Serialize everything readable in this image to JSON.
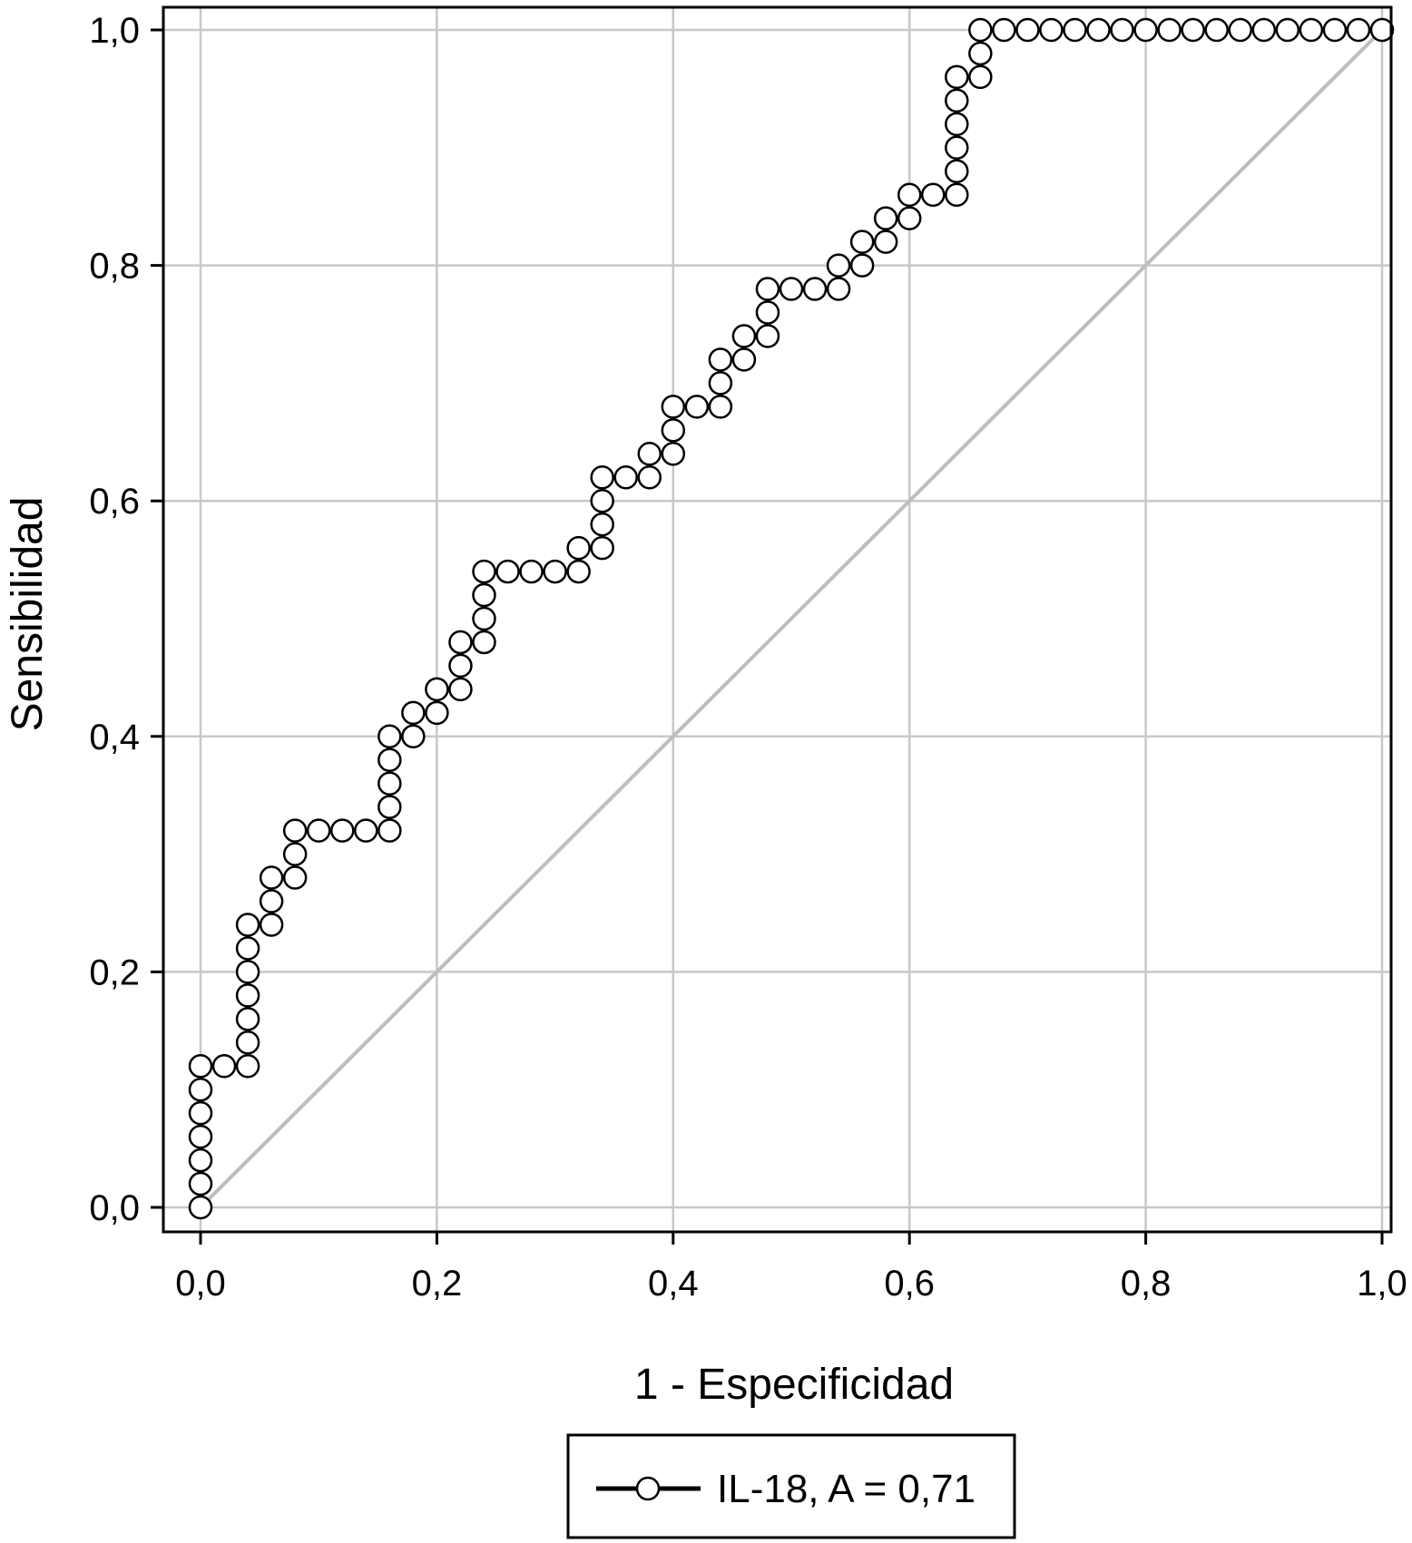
{
  "chart_data": {
    "type": "line",
    "xlabel": "1 - Especificidad",
    "ylabel": "Sensibilidad",
    "xlim": [
      0,
      1
    ],
    "ylim": [
      0,
      1
    ],
    "grid": true,
    "x_ticks": [
      "0,0",
      "0,2",
      "0,4",
      "0,6",
      "0,8",
      "1,0"
    ],
    "y_ticks": [
      "0,0",
      "0,2",
      "0,4",
      "0,6",
      "0,8",
      "1,0"
    ],
    "legend_position": "bottom-center",
    "reference_line": {
      "from": [
        0,
        0
      ],
      "to": [
        1,
        1
      ],
      "color": "#bdbdbd"
    },
    "series": [
      {
        "name": "IL-18, A = 0,71",
        "color": "#000000",
        "marker": "open-circle",
        "points": [
          [
            0.0,
            0.0
          ],
          [
            0.0,
            0.02
          ],
          [
            0.0,
            0.04
          ],
          [
            0.0,
            0.06
          ],
          [
            0.0,
            0.08
          ],
          [
            0.0,
            0.1
          ],
          [
            0.0,
            0.12
          ],
          [
            0.02,
            0.12
          ],
          [
            0.04,
            0.12
          ],
          [
            0.04,
            0.14
          ],
          [
            0.04,
            0.16
          ],
          [
            0.04,
            0.18
          ],
          [
            0.04,
            0.2
          ],
          [
            0.04,
            0.22
          ],
          [
            0.04,
            0.24
          ],
          [
            0.06,
            0.24
          ],
          [
            0.06,
            0.26
          ],
          [
            0.06,
            0.28
          ],
          [
            0.08,
            0.28
          ],
          [
            0.08,
            0.3
          ],
          [
            0.08,
            0.32
          ],
          [
            0.1,
            0.32
          ],
          [
            0.12,
            0.32
          ],
          [
            0.14,
            0.32
          ],
          [
            0.16,
            0.32
          ],
          [
            0.16,
            0.34
          ],
          [
            0.16,
            0.36
          ],
          [
            0.16,
            0.38
          ],
          [
            0.16,
            0.4
          ],
          [
            0.18,
            0.4
          ],
          [
            0.18,
            0.42
          ],
          [
            0.2,
            0.42
          ],
          [
            0.2,
            0.44
          ],
          [
            0.22,
            0.44
          ],
          [
            0.22,
            0.46
          ],
          [
            0.22,
            0.48
          ],
          [
            0.24,
            0.48
          ],
          [
            0.24,
            0.5
          ],
          [
            0.24,
            0.52
          ],
          [
            0.24,
            0.54
          ],
          [
            0.26,
            0.54
          ],
          [
            0.28,
            0.54
          ],
          [
            0.3,
            0.54
          ],
          [
            0.32,
            0.54
          ],
          [
            0.32,
            0.56
          ],
          [
            0.34,
            0.56
          ],
          [
            0.34,
            0.58
          ],
          [
            0.34,
            0.6
          ],
          [
            0.34,
            0.62
          ],
          [
            0.36,
            0.62
          ],
          [
            0.38,
            0.62
          ],
          [
            0.38,
            0.64
          ],
          [
            0.4,
            0.64
          ],
          [
            0.4,
            0.66
          ],
          [
            0.4,
            0.68
          ],
          [
            0.42,
            0.68
          ],
          [
            0.44,
            0.68
          ],
          [
            0.44,
            0.7
          ],
          [
            0.44,
            0.72
          ],
          [
            0.46,
            0.72
          ],
          [
            0.46,
            0.74
          ],
          [
            0.48,
            0.74
          ],
          [
            0.48,
            0.76
          ],
          [
            0.48,
            0.78
          ],
          [
            0.5,
            0.78
          ],
          [
            0.52,
            0.78
          ],
          [
            0.54,
            0.78
          ],
          [
            0.54,
            0.8
          ],
          [
            0.56,
            0.8
          ],
          [
            0.56,
            0.82
          ],
          [
            0.58,
            0.82
          ],
          [
            0.58,
            0.84
          ],
          [
            0.6,
            0.84
          ],
          [
            0.6,
            0.86
          ],
          [
            0.62,
            0.86
          ],
          [
            0.64,
            0.86
          ],
          [
            0.64,
            0.88
          ],
          [
            0.64,
            0.9
          ],
          [
            0.64,
            0.92
          ],
          [
            0.64,
            0.94
          ],
          [
            0.64,
            0.96
          ],
          [
            0.66,
            0.96
          ],
          [
            0.66,
            0.98
          ],
          [
            0.66,
            1.0
          ],
          [
            0.68,
            1.0
          ],
          [
            0.7,
            1.0
          ],
          [
            0.72,
            1.0
          ],
          [
            0.74,
            1.0
          ],
          [
            0.76,
            1.0
          ],
          [
            0.78,
            1.0
          ],
          [
            0.8,
            1.0
          ],
          [
            0.82,
            1.0
          ],
          [
            0.84,
            1.0
          ],
          [
            0.86,
            1.0
          ],
          [
            0.88,
            1.0
          ],
          [
            0.9,
            1.0
          ],
          [
            0.92,
            1.0
          ],
          [
            0.94,
            1.0
          ],
          [
            0.96,
            1.0
          ],
          [
            0.98,
            1.0
          ],
          [
            1.0,
            1.0
          ]
        ]
      }
    ]
  },
  "legend": {
    "label": "IL-18, A = 0,71"
  }
}
